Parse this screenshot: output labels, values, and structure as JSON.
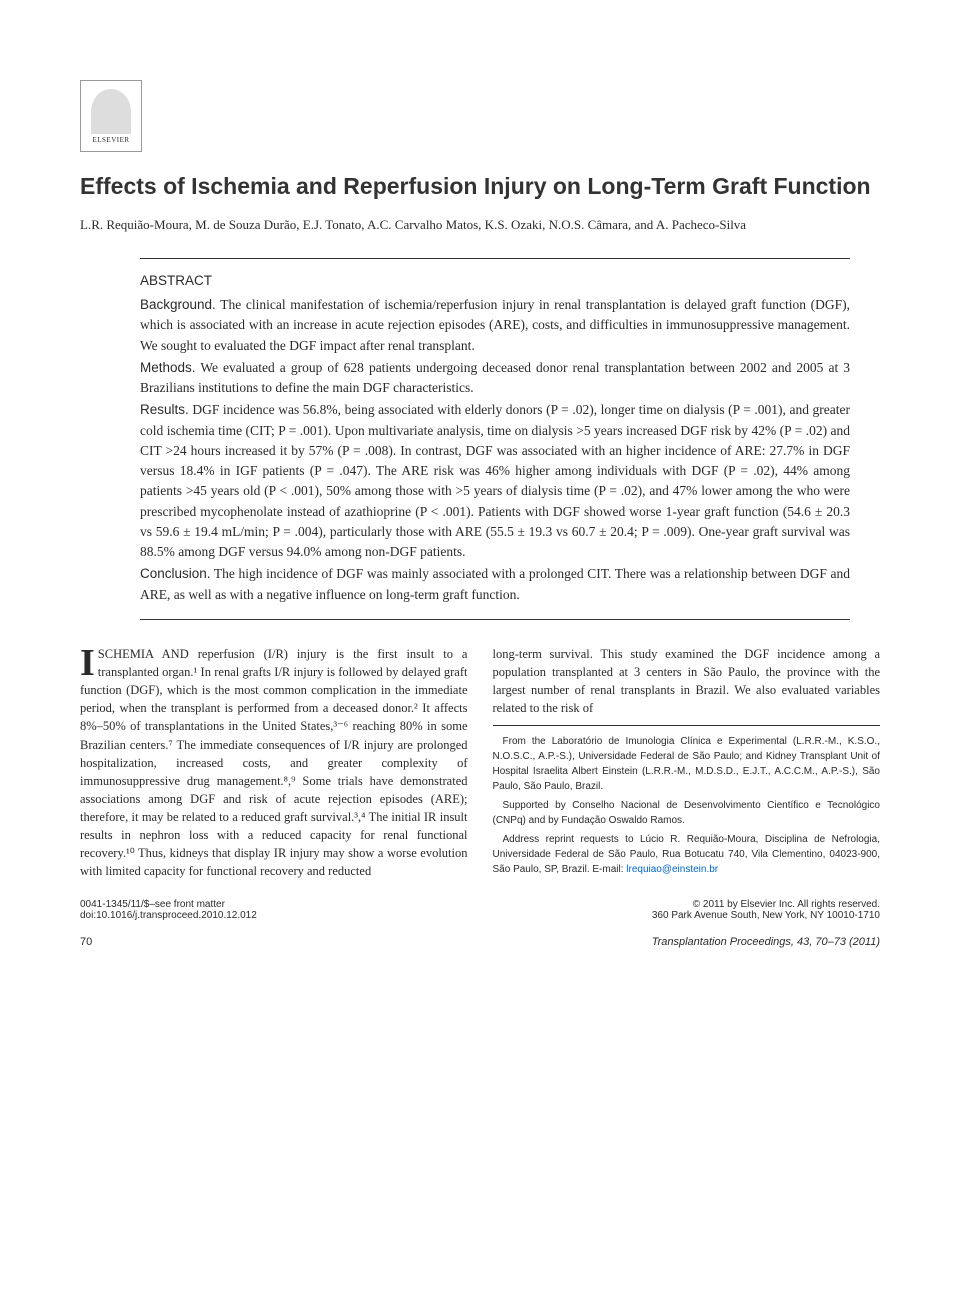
{
  "publisher": {
    "logo_label": "ELSEVIER"
  },
  "article": {
    "title": "Effects of Ischemia and Reperfusion Injury on Long-Term Graft Function",
    "authors": "L.R. Requião-Moura, M. de Souza Durão, E.J. Tonato, A.C. Carvalho Matos, K.S. Ozaki, N.O.S. Câmara, and A. Pacheco-Silva"
  },
  "abstract": {
    "heading": "ABSTRACT",
    "background_label": "Background.",
    "background_text": "The clinical manifestation of ischemia/reperfusion injury in renal transplantation is delayed graft function (DGF), which is associated with an increase in acute rejection episodes (ARE), costs, and difficulties in immunosuppressive management. We sought to evaluated the DGF impact after renal transplant.",
    "methods_label": "Methods.",
    "methods_text": "We evaluated a group of 628 patients undergoing deceased donor renal transplantation between 2002 and 2005 at 3 Brazilians institutions to define the main DGF characteristics.",
    "results_label": "Results.",
    "results_text": "DGF incidence was 56.8%, being associated with elderly donors (P = .02), longer time on dialysis (P = .001), and greater cold ischemia time (CIT; P = .001). Upon multivariate analysis, time on dialysis >5 years increased DGF risk by 42% (P = .02) and CIT >24 hours increased it by 57% (P = .008). In contrast, DGF was associated with an higher incidence of ARE: 27.7% in DGF versus 18.4% in IGF patients (P = .047). The ARE risk was 46% higher among individuals with DGF (P = .02), 44% among patients >45 years old (P < .001), 50% among those with >5 years of dialysis time (P = .02), and 47% lower among the who were prescribed mycophenolate instead of azathioprine (P < .001). Patients with DGF showed worse 1-year graft function (54.6 ± 20.3 vs 59.6 ± 19.4 mL/min; P = .004), particularly those with ARE (55.5 ± 19.3 vs 60.7 ± 20.4; P = .009). One-year graft survival was 88.5% among DGF versus 94.0% among non-DGF patients.",
    "conclusion_label": "Conclusion.",
    "conclusion_text": "The high incidence of DGF was mainly associated with a prolonged CIT. There was a relationship between DGF and ARE, as well as with a negative influence on long-term graft function."
  },
  "body": {
    "col1_first_word_rest": "SCHEMIA AND",
    "col1_text": " reperfusion (I/R) injury is the first insult to a transplanted organ.¹ In renal grafts I/R injury is followed by delayed graft function (DGF), which is the most common complication in the immediate period, when the transplant is performed from a deceased donor.² It affects 8%–50% of transplantations in the United States,³⁻⁶ reaching 80% in some Brazilian centers.⁷ The immediate consequences of I/R injury are prolonged hospitalization, increased costs, and greater complexity of immunosuppressive drug management.⁸,⁹ Some trials have demonstrated associations among DGF and risk of acute rejection episodes (ARE); therefore, it may be related to a reduced graft survival.³,⁴ The initial IR insult results in nephron loss with a reduced capacity for renal functional recovery.¹⁰ Thus, kidneys that display IR injury may show a worse evolution with limited capacity for functional recovery and reducted",
    "col2_text": "long-term survival. This study examined the DGF incidence among a population transplanted at 3 centers in São Paulo, the province with the largest number of renal transplants in Brazil. We also evaluated variables related to the risk of"
  },
  "affiliations": {
    "p1": "From the Laboratório de Imunologia Clínica e Experimental (L.R.R.-M., K.S.O., N.O.S.C., A.P.-S.), Universidade Federal de São Paulo; and Kidney Transplant Unit of Hospital Israelita Albert Einstein (L.R.R.-M., M.D.S.D., E.J.T., A.C.C.M., A.P.-S.), São Paulo, São Paulo, Brazil.",
    "p2": "Supported by Conselho Nacional de Desenvolvimento Científico e Tecnológico (CNPq) and by Fundação Oswaldo Ramos.",
    "p3": "Address reprint requests to Lúcio R. Requião-Moura, Disciplina de Nefrologia, Universidade Federal de São Paulo, Rua Botucatu 740, Vila Clementino, 04023-900, São Paulo, SP, Brazil. E-mail: ",
    "email": "lrequiao@einstein.br"
  },
  "footer": {
    "left1": "0041-1345/11/$–see front matter",
    "left2": "doi:10.1016/j.transproceed.2010.12.012",
    "right1": "© 2011 by Elsevier Inc. All rights reserved.",
    "right2": "360 Park Avenue South, New York, NY 10010-1710",
    "page_num": "70",
    "citation": "Transplantation Proceedings, 43, 70–73 (2011)"
  },
  "colors": {
    "text": "#2a2a2a",
    "link": "#0066cc",
    "rule": "#333333"
  }
}
